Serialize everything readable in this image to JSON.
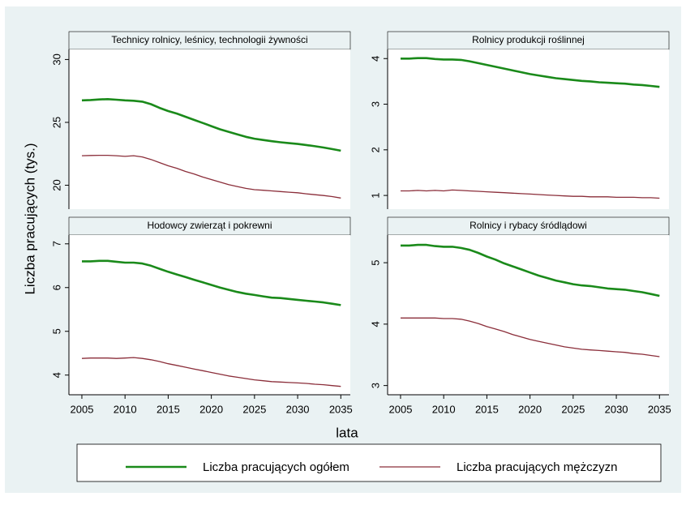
{
  "chart_data": {
    "type": "line",
    "y_label": "Liczba pracujących (tys.)",
    "x_label": "lata",
    "x": [
      2005,
      2006,
      2007,
      2008,
      2009,
      2010,
      2011,
      2012,
      2013,
      2014,
      2015,
      2016,
      2017,
      2018,
      2019,
      2020,
      2021,
      2022,
      2023,
      2024,
      2025,
      2026,
      2027,
      2028,
      2029,
      2030,
      2031,
      2032,
      2033,
      2034,
      2035
    ],
    "xlim": [
      2003.5,
      2036.1
    ],
    "xticks": [
      2005,
      2010,
      2015,
      2020,
      2025,
      2030,
      2035
    ],
    "series": [
      {
        "name": "Liczba pracujących ogółem",
        "color": "#1a8a1a"
      },
      {
        "name": "Liczba pracujących mężczyzn",
        "color": "#8b2e3a"
      }
    ],
    "panels": [
      {
        "title": "Technicy rolnicy, leśnicy, technologii żywności",
        "ylim": [
          18.1,
          30.8
        ],
        "yticks": [
          20,
          25,
          30
        ],
        "series": [
          {
            "values": [
              26.75,
              26.78,
              26.82,
              26.85,
              26.8,
              26.75,
              26.72,
              26.65,
              26.45,
              26.15,
              25.9,
              25.7,
              25.45,
              25.2,
              24.95,
              24.7,
              24.45,
              24.25,
              24.05,
              23.85,
              23.7,
              23.6,
              23.5,
              23.42,
              23.35,
              23.28,
              23.2,
              23.1,
              23.0,
              22.88,
              22.75
            ]
          },
          {
            "values": [
              22.35,
              22.37,
              22.38,
              22.38,
              22.35,
              22.3,
              22.35,
              22.25,
              22.05,
              21.8,
              21.55,
              21.35,
              21.1,
              20.9,
              20.65,
              20.45,
              20.25,
              20.05,
              19.9,
              19.75,
              19.65,
              19.6,
              19.55,
              19.5,
              19.45,
              19.4,
              19.32,
              19.25,
              19.18,
              19.1,
              18.98
            ]
          }
        ]
      },
      {
        "title": "Rolnicy produkcji roślinnej",
        "ylim": [
          0.7,
          4.2
        ],
        "yticks": [
          1,
          2,
          3,
          4
        ],
        "series": [
          {
            "values": [
              4.0,
              4.0,
              4.01,
              4.01,
              3.99,
              3.98,
              3.98,
              3.97,
              3.94,
              3.9,
              3.86,
              3.82,
              3.78,
              3.74,
              3.7,
              3.66,
              3.63,
              3.6,
              3.57,
              3.55,
              3.53,
              3.51,
              3.5,
              3.48,
              3.47,
              3.46,
              3.45,
              3.43,
              3.42,
              3.4,
              3.38
            ]
          },
          {
            "values": [
              1.1,
              1.1,
              1.11,
              1.1,
              1.11,
              1.1,
              1.12,
              1.11,
              1.1,
              1.09,
              1.08,
              1.07,
              1.06,
              1.05,
              1.04,
              1.03,
              1.02,
              1.01,
              1.0,
              0.99,
              0.98,
              0.98,
              0.97,
              0.97,
              0.97,
              0.96,
              0.96,
              0.96,
              0.95,
              0.95,
              0.94
            ]
          }
        ]
      },
      {
        "title": "Hodowcy zwierząt i pokrewni",
        "ylim": [
          3.55,
          7.2
        ],
        "yticks": [
          4,
          5,
          6,
          7
        ],
        "series": [
          {
            "values": [
              6.6,
              6.6,
              6.61,
              6.61,
              6.59,
              6.57,
              6.57,
              6.55,
              6.5,
              6.43,
              6.36,
              6.3,
              6.24,
              6.18,
              6.12,
              6.06,
              6.0,
              5.95,
              5.9,
              5.86,
              5.83,
              5.8,
              5.77,
              5.76,
              5.74,
              5.72,
              5.7,
              5.68,
              5.66,
              5.63,
              5.6
            ]
          },
          {
            "values": [
              4.38,
              4.39,
              4.39,
              4.39,
              4.38,
              4.39,
              4.4,
              4.38,
              4.35,
              4.31,
              4.26,
              4.22,
              4.18,
              4.14,
              4.1,
              4.06,
              4.02,
              3.98,
              3.95,
              3.92,
              3.89,
              3.87,
              3.85,
              3.84,
              3.83,
              3.82,
              3.81,
              3.79,
              3.78,
              3.76,
              3.74
            ]
          }
        ]
      },
      {
        "title": "Rolnicy i rybacy śródlądowi",
        "ylim": [
          2.85,
          5.45
        ],
        "yticks": [
          3,
          4,
          5
        ],
        "series": [
          {
            "values": [
              5.28,
              5.28,
              5.29,
              5.29,
              5.27,
              5.26,
              5.26,
              5.24,
              5.21,
              5.16,
              5.1,
              5.05,
              4.99,
              4.94,
              4.89,
              4.84,
              4.79,
              4.75,
              4.71,
              4.68,
              4.65,
              4.63,
              4.62,
              4.6,
              4.58,
              4.57,
              4.56,
              4.54,
              4.52,
              4.49,
              4.46
            ]
          },
          {
            "values": [
              4.1,
              4.1,
              4.1,
              4.1,
              4.1,
              4.09,
              4.09,
              4.08,
              4.05,
              4.01,
              3.96,
              3.92,
              3.88,
              3.83,
              3.79,
              3.75,
              3.72,
              3.69,
              3.66,
              3.63,
              3.61,
              3.59,
              3.58,
              3.57,
              3.56,
              3.55,
              3.54,
              3.52,
              3.51,
              3.49,
              3.47
            ]
          }
        ]
      }
    ]
  }
}
